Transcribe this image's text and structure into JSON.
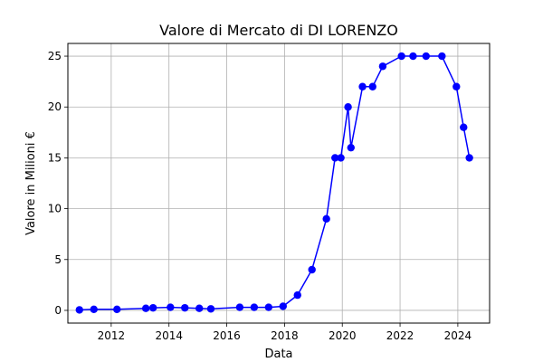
{
  "chart_data": {
    "type": "line",
    "title": "Valore di Mercato di DI LORENZO",
    "xlabel": "Data",
    "ylabel": "Valore in Milioni €",
    "x_unit": "year",
    "xlim": [
      2010.5,
      2025.1
    ],
    "ylim": [
      -1.25,
      26.25
    ],
    "xticks": [
      2012,
      2014,
      2016,
      2018,
      2020,
      2022,
      2024
    ],
    "xtick_labels": [
      "2012",
      "2014",
      "2016",
      "2018",
      "2020",
      "2022",
      "2024"
    ],
    "yticks": [
      0,
      5,
      10,
      15,
      20,
      25
    ],
    "ytick_labels": [
      "0",
      "5",
      "10",
      "15",
      "20",
      "25"
    ],
    "grid": true,
    "legend": "none",
    "colors": {
      "series": "#0000ff",
      "grid": "#b0b0b0",
      "axis": "#000000"
    },
    "series": [
      {
        "x": [
          2010.9,
          2011.4,
          2012.2,
          2013.2,
          2013.45,
          2014.05,
          2014.55,
          2015.05,
          2015.45,
          2016.45,
          2016.95,
          2017.45,
          2017.95,
          2018.45,
          2018.95,
          2019.45,
          2019.75,
          2019.95,
          2020.2,
          2020.3,
          2020.7,
          2021.05,
          2021.4,
          2022.05,
          2022.45,
          2022.9,
          2023.45,
          2023.95,
          2024.2,
          2024.4
        ],
        "y": [
          0.05,
          0.1,
          0.1,
          0.2,
          0.25,
          0.3,
          0.25,
          0.2,
          0.15,
          0.3,
          0.3,
          0.3,
          0.4,
          1.5,
          4,
          9,
          15,
          15,
          20,
          16,
          22,
          22,
          24,
          25,
          25,
          25,
          25,
          22,
          18,
          15
        ]
      }
    ]
  }
}
